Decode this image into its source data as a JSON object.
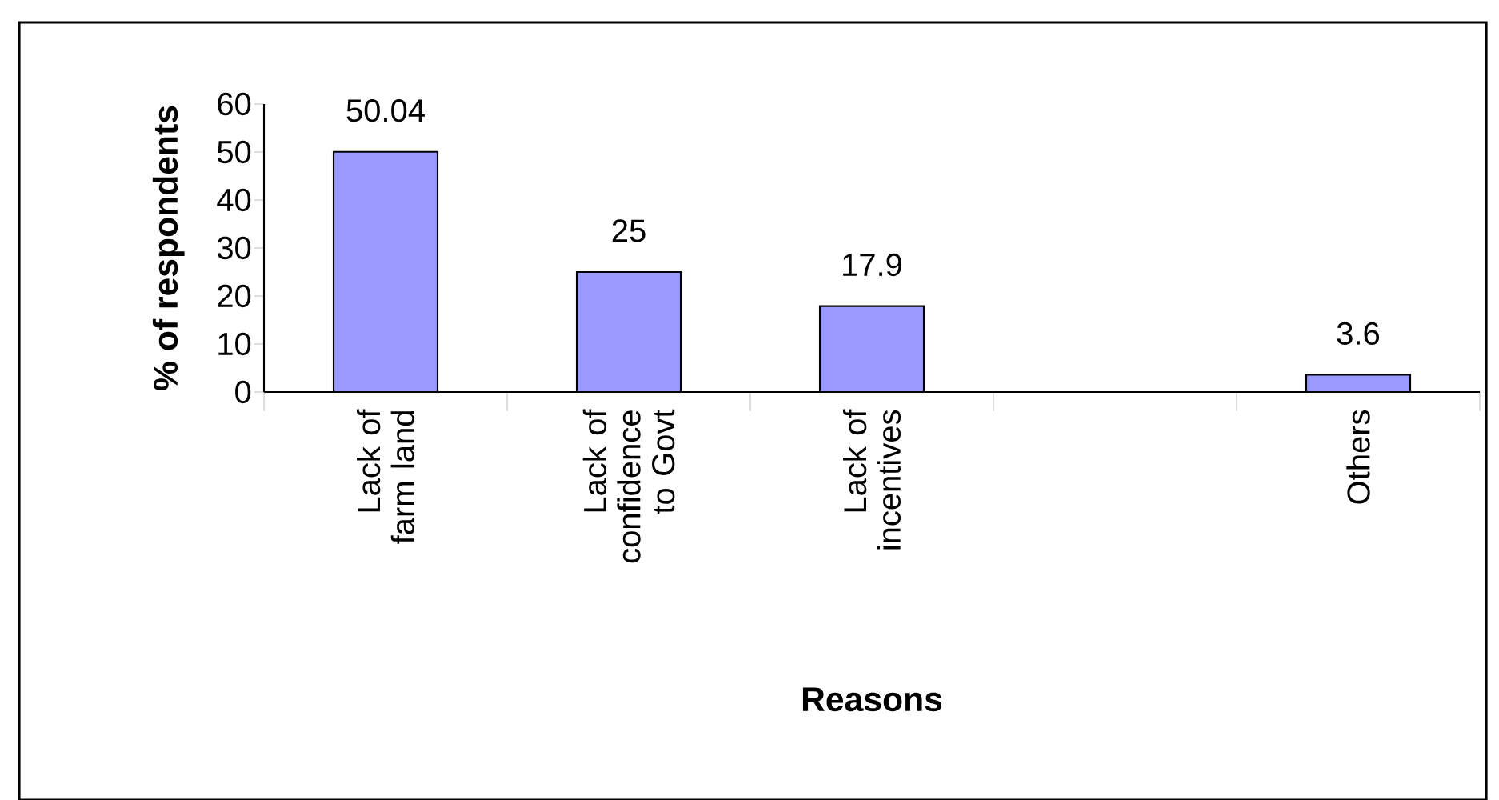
{
  "chart_data": {
    "type": "bar",
    "xlabel": "Reasons",
    "ylabel": "% of respondents",
    "categories": [
      "Lack of farm land",
      "Lack of confidence to Govt",
      "Lack of incentives",
      null,
      "Others"
    ],
    "values": [
      50.04,
      25,
      17.9,
      null,
      3.6
    ],
    "color": "#9999ff",
    "ylim": [
      0,
      60
    ],
    "yticks": [
      0,
      10,
      20,
      30,
      40,
      50,
      60
    ],
    "data_labels": true
  }
}
